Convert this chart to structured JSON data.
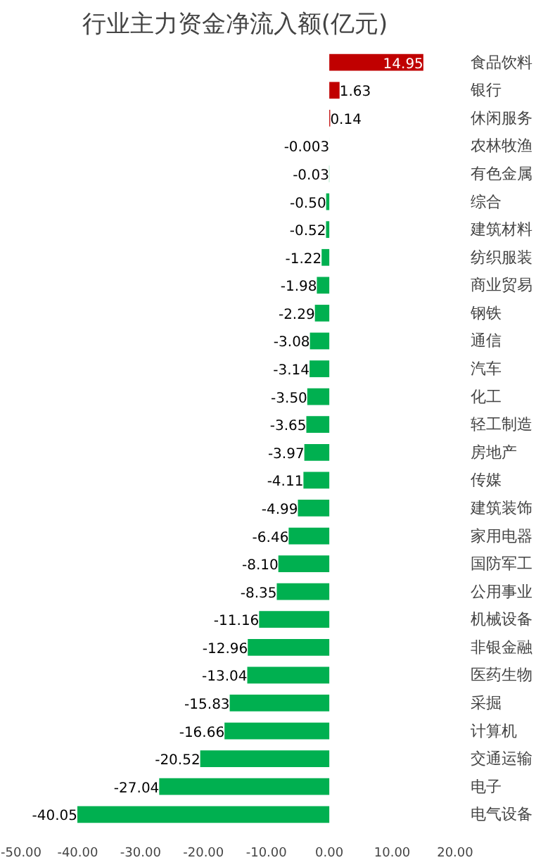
{
  "chart_data": {
    "type": "bar",
    "orientation": "horizontal",
    "title": "行业主力资金净流入额(亿元)",
    "categories": [
      "食品饮料",
      "银行",
      "休闲服务",
      "农林牧渔",
      "有色金属",
      "综合",
      "建筑材料",
      "纺织服装",
      "商业贸易",
      "钢铁",
      "通信",
      "汽车",
      "化工",
      "轻工制造",
      "房地产",
      "传媒",
      "建筑装饰",
      "家用电器",
      "国防军工",
      "公用事业",
      "机械设备",
      "非银金融",
      "医药生物",
      "采掘",
      "计算机",
      "交通运输",
      "电子",
      "电气设备"
    ],
    "values": [
      14.95,
      1.63,
      0.14,
      -0.003,
      -0.03,
      -0.5,
      -0.52,
      -1.22,
      -1.98,
      -2.29,
      -3.08,
      -3.14,
      -3.5,
      -3.65,
      -3.97,
      -4.11,
      -4.99,
      -6.46,
      -8.1,
      -8.35,
      -11.16,
      -12.96,
      -13.04,
      -15.83,
      -16.66,
      -20.52,
      -27.04,
      -40.05
    ],
    "value_labels": [
      "14.95",
      "1.63",
      "0.14",
      "-0.003",
      "-0.03",
      "-0.50",
      "-0.52",
      "-1.22",
      "-1.98",
      "-2.29",
      "-3.08",
      "-3.14",
      "-3.50",
      "-3.65",
      "-3.97",
      "-4.11",
      "-4.99",
      "-6.46",
      "-8.10",
      "-8.35",
      "-11.16",
      "-12.96",
      "-13.04",
      "-15.83",
      "-16.66",
      "-20.52",
      "-27.04",
      "-40.05"
    ],
    "colors": [
      "#c00000",
      "#c00000",
      "#c00000",
      "#00b050",
      "#00b050",
      "#00b050",
      "#00b050",
      "#00b050",
      "#00b050",
      "#00b050",
      "#00b050",
      "#00b050",
      "#00b050",
      "#00b050",
      "#00b050",
      "#00b050",
      "#00b050",
      "#00b050",
      "#00b050",
      "#00b050",
      "#00b050",
      "#00b050",
      "#00b050",
      "#00b050",
      "#00b050",
      "#00b050",
      "#00b050",
      "#00b050"
    ],
    "xlim": [
      -50,
      20
    ],
    "xticks": [
      {
        "value": -50,
        "label": "-50.00"
      },
      {
        "value": -40,
        "label": "-40.00"
      },
      {
        "value": -30,
        "label": "-30.00"
      },
      {
        "value": -20,
        "label": "-20.00"
      },
      {
        "value": -10,
        "label": "-10.00"
      },
      {
        "value": 0,
        "label": "0.00"
      },
      {
        "value": 10,
        "label": "10.00"
      },
      {
        "value": 20,
        "label": "20.00"
      }
    ],
    "grid": false
  }
}
